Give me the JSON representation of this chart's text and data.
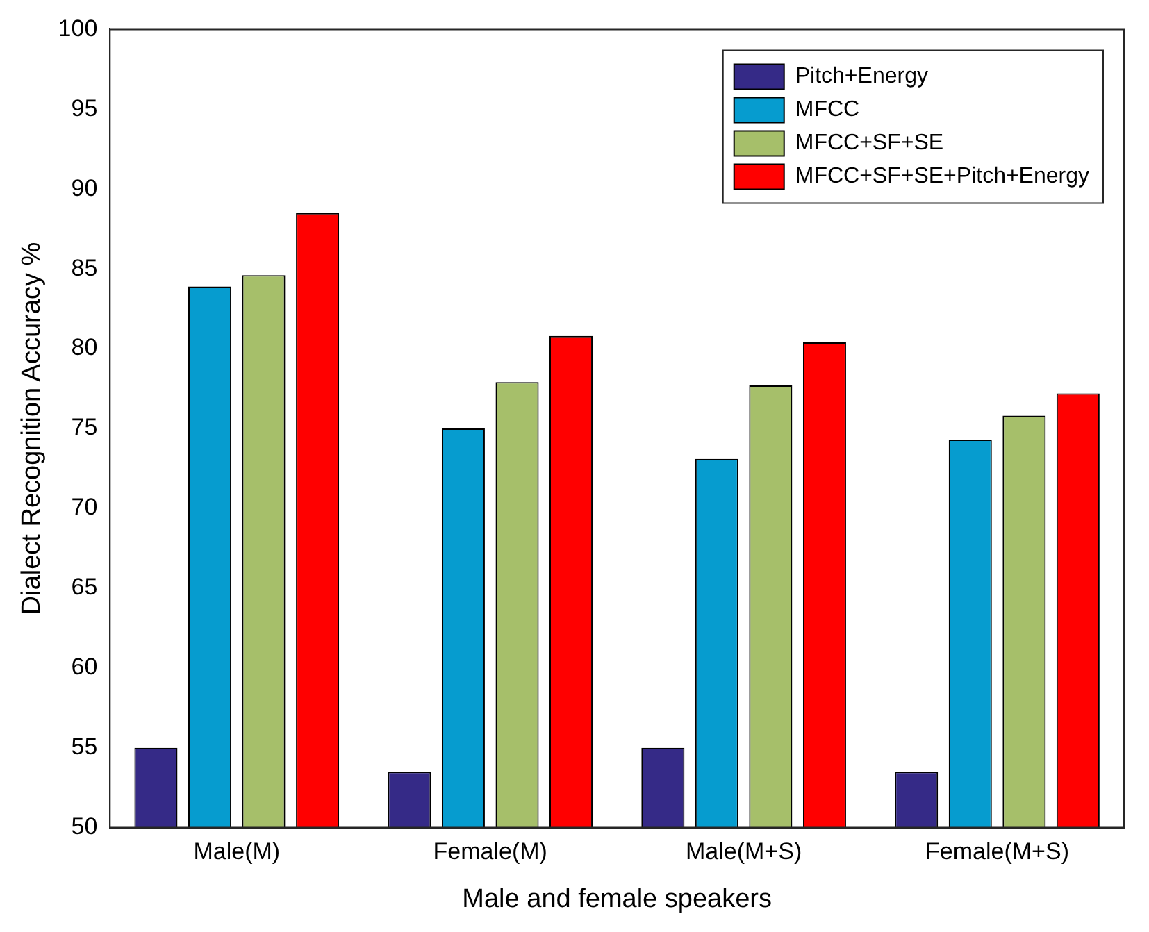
{
  "chart_data": {
    "type": "bar",
    "xlabel": "Male and female speakers",
    "ylabel": "Dialect Recognition Accuracy %",
    "categories": [
      "Male(M)",
      "Female(M)",
      "Male(M+S)",
      "Female(M+S)"
    ],
    "series": [
      {
        "name": "Pitch+Energy",
        "color": "#352a87",
        "values": [
          55.0,
          53.5,
          55.0,
          53.5
        ]
      },
      {
        "name": "MFCC",
        "color": "#069ccf",
        "values": [
          83.9,
          75.0,
          73.1,
          74.3
        ]
      },
      {
        "name": "MFCC+SF+SE",
        "color": "#a6bf6a",
        "values": [
          84.6,
          77.9,
          77.7,
          75.8
        ]
      },
      {
        "name": "MFCC+SF+SE+Pitch+Energy",
        "color": "#ff0000",
        "values": [
          88.5,
          80.8,
          80.4,
          77.2
        ]
      }
    ],
    "ylim": [
      50,
      100
    ],
    "yticks": [
      50,
      55,
      60,
      65,
      70,
      75,
      80,
      85,
      90,
      95,
      100
    ],
    "grid": false,
    "legend": "top right"
  }
}
